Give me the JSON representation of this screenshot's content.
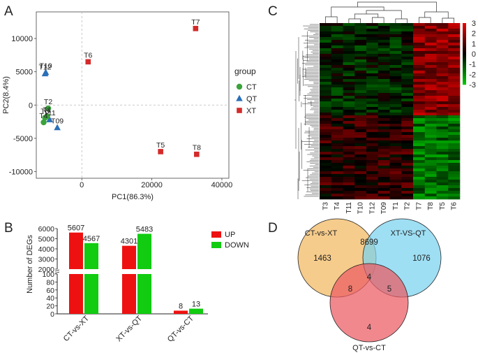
{
  "panels": {
    "a": "A",
    "b": "B",
    "c": "C",
    "d": "D"
  },
  "chart_data": [
    {
      "panel": "A",
      "type": "scatter",
      "xlabel": "PC1(86.3%)",
      "ylabel": "PC2(8.4%)",
      "xlim": [
        -13000,
        42000
      ],
      "ylim": [
        -11000,
        14000
      ],
      "xticks": [
        "0",
        "20000",
        "40000"
      ],
      "xtick_values": [
        0,
        20000,
        40000
      ],
      "yticks": [
        "-10000",
        "-5000",
        "0",
        "5000",
        "10000"
      ],
      "ytick_values": [
        -10000,
        -5000,
        0,
        5000,
        10000
      ],
      "legend_title": "group",
      "legend": [
        {
          "group": "CT",
          "shape": "circle",
          "color": "#3aa33a"
        },
        {
          "group": "QT",
          "shape": "triangle",
          "color": "#2a6fb8"
        },
        {
          "group": "XT",
          "shape": "square",
          "color": "#d42a2a"
        }
      ],
      "points": [
        {
          "label": "T7",
          "x": 32500,
          "y": 11500,
          "group": "XT"
        },
        {
          "label": "T6",
          "x": 1800,
          "y": 6500,
          "group": "XT"
        },
        {
          "label": "T5",
          "x": 22500,
          "y": -7000,
          "group": "XT"
        },
        {
          "label": "T8",
          "x": 32800,
          "y": -7400,
          "group": "XT"
        },
        {
          "label": "T12",
          "x": -10500,
          "y": 4700,
          "group": "QT"
        },
        {
          "label": "T10",
          "x": -10300,
          "y": 4900,
          "group": "QT"
        },
        {
          "label": "T09",
          "x": -7000,
          "y": -3400,
          "group": "QT"
        },
        {
          "label": "T11",
          "x": -9200,
          "y": -2200,
          "group": "QT"
        },
        {
          "label": "T2",
          "x": -9600,
          "y": -500,
          "group": "CT"
        },
        {
          "label": "T1",
          "x": -9900,
          "y": -1700,
          "group": "CT"
        },
        {
          "label": "T3",
          "x": -10500,
          "y": -1900,
          "group": "CT"
        },
        {
          "label": "T4",
          "x": -10900,
          "y": -2600,
          "group": "CT"
        }
      ]
    },
    {
      "panel": "B",
      "type": "bar",
      "ylabel": "Number of DEGs",
      "categories": [
        "CT-vs-XT",
        "XT-vs-QT",
        "QT-vs-CT"
      ],
      "series": [
        {
          "name": "UP",
          "color": "#ee1111",
          "values": [
            5607,
            4301,
            8
          ]
        },
        {
          "name": "DOWN",
          "color": "#11cc11",
          "values": [
            4567,
            5483,
            13
          ]
        }
      ],
      "axis_break": {
        "lower": [
          0,
          100
        ],
        "upper": [
          2000,
          6000
        ]
      },
      "yticks_lower": [
        "0",
        "20",
        "40",
        "60",
        "80",
        "100"
      ],
      "yticks_upper": [
        "2000",
        "3000",
        "4000",
        "5000",
        "6000"
      ]
    },
    {
      "panel": "C",
      "type": "heatmap",
      "columns": [
        "T3",
        "T4",
        "T11",
        "T10",
        "T12",
        "T09",
        "T1",
        "T2",
        "T7",
        "T8",
        "T5",
        "T6"
      ],
      "scale_ticks": [
        "3",
        "2",
        "1",
        "0",
        "-1",
        "-2",
        "-3"
      ],
      "scale_range": [
        -3,
        3
      ],
      "colors": {
        "low": "#00cc00",
        "mid": "#000000",
        "high": "#ee0000"
      }
    },
    {
      "panel": "D",
      "type": "venn",
      "sets": [
        {
          "name": "CT-vs-XT",
          "color": "#f2b95f"
        },
        {
          "name": "XT-VS-QT",
          "color": "#79d3f0"
        },
        {
          "name": "QT-vs-CT",
          "color": "#ec5a62"
        }
      ],
      "regions": {
        "ct_xt_only": 1463,
        "xt_qt_only": 1076,
        "qt_ct_only": 4,
        "ct_xt_and_xt_qt": 8699,
        "ct_xt_and_qt_ct": 8,
        "xt_qt_and_qt_ct": 5,
        "all_three": 4
      }
    }
  ]
}
